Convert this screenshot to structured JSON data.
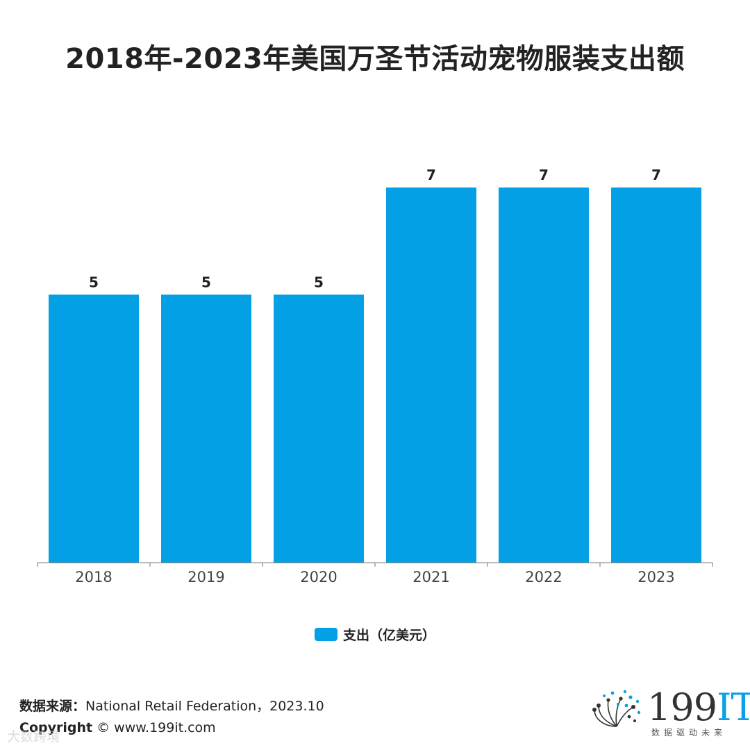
{
  "chart_data": {
    "type": "bar",
    "title": "2018年-2023年美国万圣节活动宠物服装支出额",
    "categories": [
      "2018",
      "2019",
      "2020",
      "2021",
      "2022",
      "2023"
    ],
    "series": [
      {
        "name": "支出（亿美元）",
        "values": [
          5,
          5,
          5,
          7,
          7,
          7
        ]
      }
    ],
    "ylim": [
      0,
      7
    ],
    "grid": false,
    "legend_position": "bottom-center",
    "colors": {
      "bar": "#04a0e6",
      "axis": "#888888"
    }
  },
  "footer": {
    "source_key": "数据来源：",
    "source_value": "National Retail Federation，2023.10",
    "copyright_key": "Copyright",
    "copyright_value": " © www.199it.com",
    "watermark": "大数跨境"
  },
  "logo": {
    "icon": "dots-sphere-icon",
    "text_main": "199",
    "text_accent": "IT",
    "tagline": "数据驱动未来"
  }
}
